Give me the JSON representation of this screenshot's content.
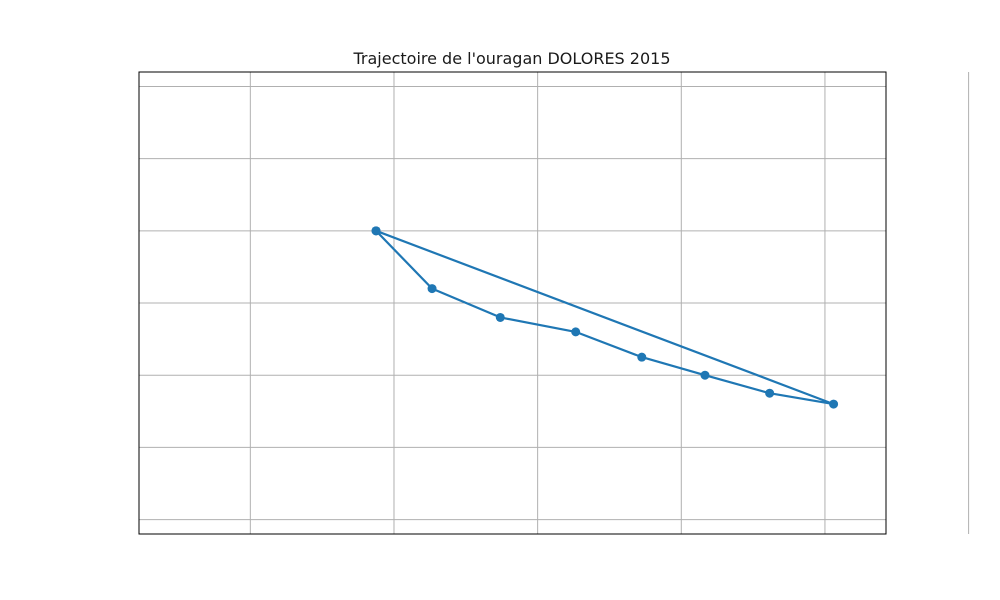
{
  "chart_data": {
    "type": "line",
    "title": "Trajectoire de l'ouragan DOLORES 2015",
    "xlabel": "",
    "ylabel": "",
    "x_ticks": [
      -8,
      -6,
      -4,
      -2,
      0,
      2
    ],
    "y_ticks": [
      -3,
      -2,
      -1,
      0,
      1,
      2,
      3
    ],
    "xlim": [
      -9.55,
      0.85
    ],
    "ylim": [
      -3.2,
      3.2
    ],
    "grid": true,
    "color": "#1f77b4",
    "series": [
      {
        "name": "",
        "points": [
          {
            "x": -6.25,
            "y": 1.0
          },
          {
            "x": -5.47,
            "y": 0.2
          },
          {
            "x": -4.52,
            "y": -0.2
          },
          {
            "x": -3.47,
            "y": -0.4
          },
          {
            "x": -2.55,
            "y": -0.75
          },
          {
            "x": -1.67,
            "y": -1.0
          },
          {
            "x": -0.77,
            "y": -1.25
          },
          {
            "x": 0.12,
            "y": -1.4
          },
          {
            "x": -6.25,
            "y": 1.0
          }
        ]
      }
    ]
  }
}
